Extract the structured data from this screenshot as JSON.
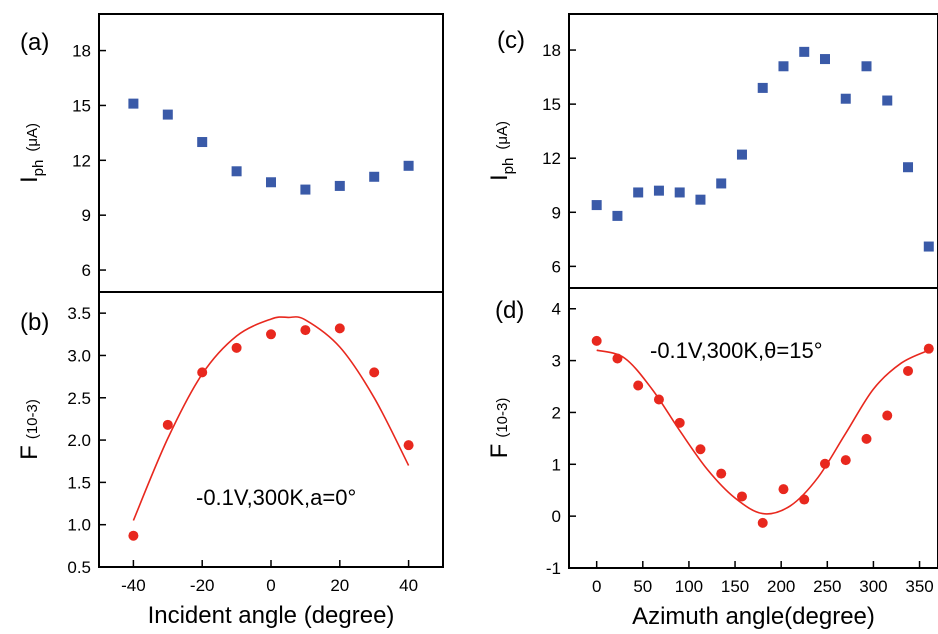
{
  "chart_data": [
    {
      "panel": "(a)",
      "type": "scatter",
      "ylabel": {
        "main": "I",
        "sub": "ph",
        "unit": "(μA)"
      },
      "xlabel": "",
      "xlim": [
        -50,
        50
      ],
      "ylim": [
        4.8,
        20
      ],
      "yticks": [
        6,
        9,
        12,
        15,
        18
      ],
      "xticks": [],
      "marker": "square",
      "color": "#3a5aa8",
      "series": [
        {
          "x": [
            -40,
            -30,
            -20,
            -10,
            0,
            10,
            20,
            30,
            40
          ],
          "y": [
            15.1,
            14.5,
            13.0,
            11.4,
            10.8,
            10.4,
            10.6,
            11.1,
            11.7
          ]
        }
      ]
    },
    {
      "panel": "(b)",
      "type": "scatter",
      "ylabel": {
        "main": "F",
        "unit": "(10-3)"
      },
      "xlabel": "Incident angle (degree)",
      "xlim": [
        -50,
        50
      ],
      "ylim": [
        0.5,
        3.75
      ],
      "yticks": [
        0.5,
        1.0,
        1.5,
        2.0,
        2.5,
        3.0,
        3.5
      ],
      "ytick_labels": [
        "0.5",
        "1.0",
        "1.5",
        "2.0",
        "2.5",
        "3.0",
        "3.5"
      ],
      "xticks": [
        -40,
        -20,
        0,
        20,
        40
      ],
      "marker": "circle",
      "color": "#e8281e",
      "annotation": "-0.1V,300K,a=0°",
      "series": [
        {
          "x": [
            -40,
            -30,
            -20,
            -10,
            0,
            10,
            20,
            30,
            40
          ],
          "y": [
            0.87,
            2.18,
            2.8,
            3.09,
            3.25,
            3.3,
            3.32,
            2.8,
            1.94
          ]
        }
      ],
      "fit": {
        "x": [
          -40,
          -30,
          -20,
          -10,
          0,
          5,
          10,
          20,
          30,
          40
        ],
        "y": [
          1.05,
          2.02,
          2.78,
          3.23,
          3.43,
          3.45,
          3.42,
          3.1,
          2.5,
          1.7
        ]
      }
    },
    {
      "panel": "(c)",
      "type": "scatter",
      "ylabel": {
        "main": "I",
        "sub": "ph",
        "unit": "(μA)"
      },
      "xlabel": "",
      "xlim": [
        -30,
        370
      ],
      "ylim": [
        4.8,
        20
      ],
      "yticks": [
        6,
        9,
        12,
        15,
        18
      ],
      "xticks": [],
      "marker": "square",
      "color": "#3a5aa8",
      "series": [
        {
          "x": [
            0,
            22.5,
            45,
            67.5,
            90,
            112.5,
            135,
            157.5,
            180,
            202.5,
            225,
            247.5,
            270,
            292.5,
            315,
            337.5,
            360
          ],
          "y": [
            9.4,
            8.8,
            10.1,
            10.2,
            10.1,
            9.7,
            10.6,
            12.2,
            15.9,
            17.1,
            17.9,
            17.5,
            15.3,
            17.1,
            15.2,
            11.5,
            7.1
          ]
        }
      ]
    },
    {
      "panel": "(d)",
      "type": "scatter",
      "ylabel": {
        "main": "F",
        "unit": "(10-3)"
      },
      "xlabel": "Azimuth angle(degree)",
      "xlim": [
        -30,
        370
      ],
      "ylim": [
        -1,
        4.4
      ],
      "yticks": [
        -1,
        0,
        1,
        2,
        3,
        4
      ],
      "xticks": [
        0,
        50,
        100,
        150,
        200,
        250,
        300,
        350
      ],
      "marker": "circle",
      "color": "#e8281e",
      "annotation": "-0.1V,300K,θ=15°",
      "series": [
        {
          "x": [
            0,
            22.5,
            45,
            67.5,
            90,
            112.5,
            135,
            157.5,
            180,
            202.5,
            225,
            247.5,
            270,
            292.5,
            315,
            337.5,
            360
          ],
          "y": [
            3.38,
            3.04,
            2.52,
            2.25,
            1.8,
            1.29,
            0.82,
            0.38,
            -0.13,
            0.52,
            0.32,
            1.01,
            1.08,
            1.49,
            1.94,
            2.8,
            3.23
          ]
        }
      ],
      "fit": {
        "x": [
          0,
          30,
          60,
          90,
          120,
          150,
          180,
          210,
          240,
          270,
          300,
          330,
          360
        ],
        "y": [
          3.2,
          3.05,
          2.45,
          1.65,
          0.9,
          0.35,
          0.05,
          0.2,
          0.75,
          1.6,
          2.45,
          2.95,
          3.2
        ]
      }
    }
  ]
}
